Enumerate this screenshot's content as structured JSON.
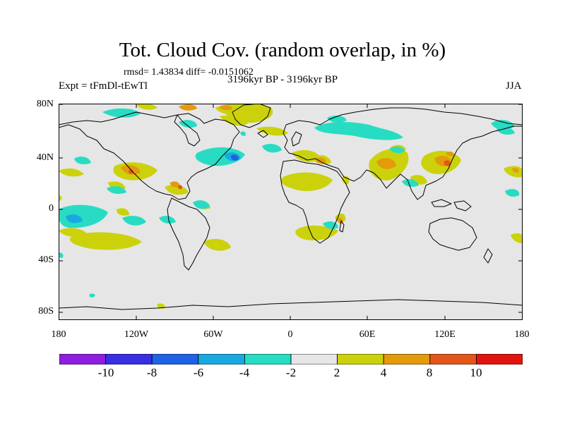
{
  "title": "Tot. Cloud Cov. (random overlap, in %)",
  "stats": "rmsd= 1.43834 diff= -0.0151062",
  "experiment": "Expt = tFmDl-tEwTl",
  "period": "3196kyr BP - 3196kyr BP",
  "season": "JJA",
  "lat_ticks": [
    "80N",
    "40N",
    "0",
    "40S",
    "80S"
  ],
  "lon_ticks": [
    "180",
    "120W",
    "60W",
    "0",
    "60E",
    "120E",
    "180"
  ],
  "colorbar": {
    "labels": [
      "-10",
      "-8",
      "-6",
      "-4",
      "-2",
      "2",
      "4",
      "8",
      "10"
    ],
    "colors": [
      "#8f1ee0",
      "#3a2ee3",
      "#1e62e6",
      "#18a9e0",
      "#27dcc3",
      "#e6e6e6",
      "#cbd20b",
      "#e39a0b",
      "#e2561a",
      "#e3140f"
    ]
  },
  "colors": {
    "background": "#e6e6e6",
    "coast": "#000000"
  }
}
